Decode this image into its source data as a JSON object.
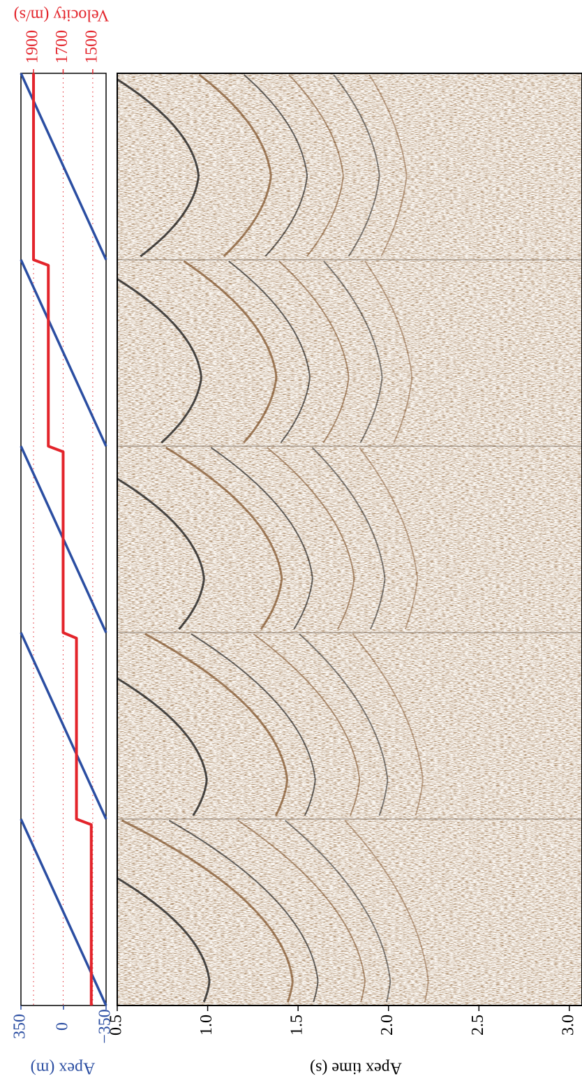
{
  "chart_data": {
    "type": "line",
    "x_label": "Apex time (s)",
    "y_label": "Apex (m)",
    "y2_label": "Velocity (m/s)",
    "xlim": [
      0.5,
      3.07
    ],
    "xticks": [
      0.5,
      {
        "value": 1.0,
        "label": "1.0"
      },
      1.5,
      {
        "value": 2.0,
        "label": "2.0"
      },
      2.5,
      {
        "value": 3.0,
        "label": "3.0"
      }
    ],
    "ylim": [
      350,
      -350
    ],
    "yticks": [
      350,
      0,
      {
        "value": -350,
        "label": "−350"
      }
    ],
    "y2lim": [
      1985,
      1410
    ],
    "y2ticks": [
      1900,
      1700,
      1500
    ],
    "series": [
      {
        "color": "#2b4ea2",
        "values": [
          350,
          -350,
          350,
          -350,
          350,
          -350,
          350,
          -350,
          350,
          -350
        ]
      },
      {
        "color": "#e3242b",
        "axis": "y2",
        "values": [
          1900,
          1800,
          1700,
          1610,
          1510
        ]
      }
    ]
  }
}
